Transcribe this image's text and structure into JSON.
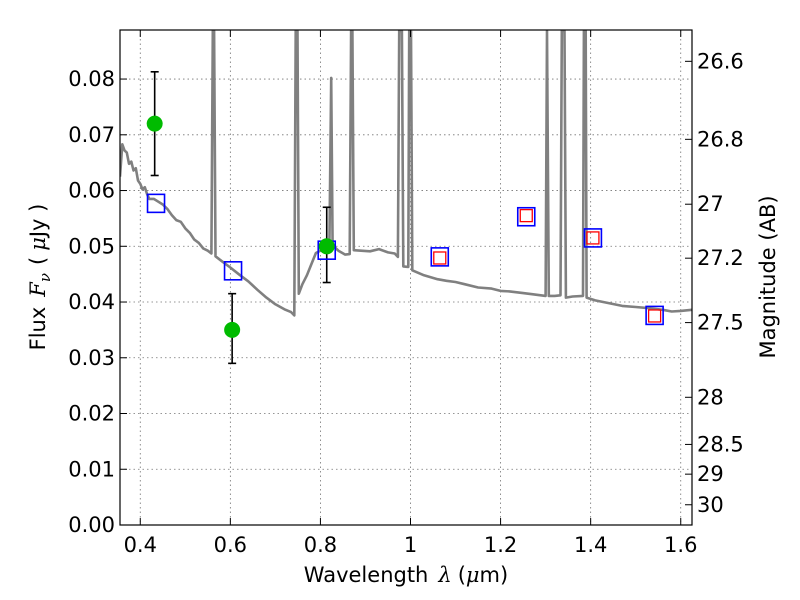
{
  "chart_data": {
    "type": "scatter",
    "xlabel": "Wavelength",
    "xlabel_symbol": "λ",
    "xlabel_unit_open": "(",
    "xlabel_unit_mu": "μ",
    "xlabel_unit_rest": "m)",
    "ylabel": "Flux",
    "ylabel_symbol": "F",
    "ylabel_subscript": "ν",
    "ylabel_unit_open": "(",
    "ylabel_unit_mu": "μ",
    "ylabel_unit_rest": "Jy )",
    "y2label": "Magnitude (AB)",
    "xlim": [
      0.355,
      1.625
    ],
    "ylim": [
      0.0,
      0.0888
    ],
    "grid": true,
    "x_ticks": [
      {
        "value": 0.4,
        "label": "0.4"
      },
      {
        "value": 0.6,
        "label": "0.6"
      },
      {
        "value": 0.8,
        "label": "0.8"
      },
      {
        "value": 1.0,
        "label": "1"
      },
      {
        "value": 1.2,
        "label": "1.2"
      },
      {
        "value": 1.4,
        "label": "1.4"
      },
      {
        "value": 1.6,
        "label": "1.6"
      }
    ],
    "y_ticks": [
      {
        "value": 0.0,
        "label": "0.00"
      },
      {
        "value": 0.01,
        "label": "0.01"
      },
      {
        "value": 0.02,
        "label": "0.02"
      },
      {
        "value": 0.03,
        "label": "0.03"
      },
      {
        "value": 0.04,
        "label": "0.04"
      },
      {
        "value": 0.05,
        "label": "0.05"
      },
      {
        "value": 0.06,
        "label": "0.06"
      },
      {
        "value": 0.07,
        "label": "0.07"
      },
      {
        "value": 0.08,
        "label": "0.08"
      }
    ],
    "y2_ticks": [
      {
        "value": 26.6,
        "label": "26.6"
      },
      {
        "value": 26.8,
        "label": "26.8"
      },
      {
        "value": 27.0,
        "label": "27"
      },
      {
        "value": 27.2,
        "label": "27.2"
      },
      {
        "value": 27.5,
        "label": "27.5"
      },
      {
        "value": 28.0,
        "label": "28"
      },
      {
        "value": 28.5,
        "label": "28.5"
      },
      {
        "value": 29.0,
        "label": "29"
      },
      {
        "value": 30.0,
        "label": "30"
      }
    ],
    "series": [
      {
        "kind": "sed_model_line",
        "color": "#808080",
        "points": [
          [
            0.355,
            0.0625
          ],
          [
            0.36,
            0.0683
          ],
          [
            0.365,
            0.0672
          ],
          [
            0.37,
            0.0668
          ],
          [
            0.375,
            0.0648
          ],
          [
            0.38,
            0.0652
          ],
          [
            0.385,
            0.0636
          ],
          [
            0.39,
            0.064
          ],
          [
            0.395,
            0.0618
          ],
          [
            0.4,
            0.0612
          ],
          [
            0.405,
            0.0602
          ],
          [
            0.41,
            0.0606
          ],
          [
            0.415,
            0.0594
          ],
          [
            0.42,
            0.0585
          ],
          [
            0.43,
            0.0585
          ],
          [
            0.44,
            0.058
          ],
          [
            0.45,
            0.0575
          ],
          [
            0.46,
            0.0567
          ],
          [
            0.47,
            0.0556
          ],
          [
            0.48,
            0.0547
          ],
          [
            0.49,
            0.0544
          ],
          [
            0.5,
            0.0532
          ],
          [
            0.51,
            0.0524
          ],
          [
            0.52,
            0.0512
          ],
          [
            0.53,
            0.0506
          ],
          [
            0.54,
            0.0496
          ],
          [
            0.55,
            0.0492
          ],
          [
            0.558,
            0.0487
          ],
          [
            0.561,
            0.0886
          ],
          [
            0.564,
            0.0886
          ],
          [
            0.567,
            0.0482
          ],
          [
            0.58,
            0.0474
          ],
          [
            0.6,
            0.0462
          ],
          [
            0.62,
            0.0449
          ],
          [
            0.64,
            0.0437
          ],
          [
            0.66,
            0.0422
          ],
          [
            0.68,
            0.0408
          ],
          [
            0.7,
            0.0396
          ],
          [
            0.72,
            0.0387
          ],
          [
            0.735,
            0.0382
          ],
          [
            0.742,
            0.0376
          ],
          [
            0.745,
            0.0886
          ],
          [
            0.749,
            0.0886
          ],
          [
            0.752,
            0.0415
          ],
          [
            0.76,
            0.0432
          ],
          [
            0.77,
            0.0448
          ],
          [
            0.78,
            0.0468
          ],
          [
            0.79,
            0.0488
          ],
          [
            0.8,
            0.0492
          ],
          [
            0.81,
            0.0498
          ],
          [
            0.82,
            0.0502
          ],
          [
            0.824,
            0.0802
          ],
          [
            0.827,
            0.0502
          ],
          [
            0.84,
            0.0492
          ],
          [
            0.855,
            0.0485
          ],
          [
            0.865,
            0.0486
          ],
          [
            0.868,
            0.0886
          ],
          [
            0.871,
            0.0886
          ],
          [
            0.874,
            0.0493
          ],
          [
            0.89,
            0.0492
          ],
          [
            0.91,
            0.0491
          ],
          [
            0.93,
            0.0495
          ],
          [
            0.95,
            0.0489
          ],
          [
            0.965,
            0.0487
          ],
          [
            0.972,
            0.0481
          ],
          [
            0.975,
            0.0886
          ],
          [
            0.981,
            0.0886
          ],
          [
            0.984,
            0.0464
          ],
          [
            0.995,
            0.0463
          ],
          [
            0.997,
            0.0886
          ],
          [
            1.001,
            0.0886
          ],
          [
            1.004,
            0.0457
          ],
          [
            1.03,
            0.0448
          ],
          [
            1.06,
            0.0441
          ],
          [
            1.08,
            0.0438
          ],
          [
            1.1,
            0.0436
          ],
          [
            1.12,
            0.0432
          ],
          [
            1.15,
            0.0426
          ],
          [
            1.18,
            0.0424
          ],
          [
            1.2,
            0.042
          ],
          [
            1.22,
            0.0419
          ],
          [
            1.25,
            0.0416
          ],
          [
            1.27,
            0.0414
          ],
          [
            1.3,
            0.0411
          ],
          [
            1.303,
            0.0886
          ],
          [
            1.307,
            0.0411
          ],
          [
            1.32,
            0.0411
          ],
          [
            1.333,
            0.0412
          ],
          [
            1.336,
            0.0886
          ],
          [
            1.342,
            0.0886
          ],
          [
            1.345,
            0.0408
          ],
          [
            1.36,
            0.041
          ],
          [
            1.383,
            0.0411
          ],
          [
            1.385,
            0.0886
          ],
          [
            1.389,
            0.0886
          ],
          [
            1.391,
            0.0408
          ],
          [
            1.41,
            0.0403
          ],
          [
            1.44,
            0.0398
          ],
          [
            1.47,
            0.0393
          ],
          [
            1.5,
            0.0391
          ],
          [
            1.53,
            0.0389
          ],
          [
            1.56,
            0.0386
          ],
          [
            1.58,
            0.0383
          ],
          [
            1.6,
            0.0384
          ],
          [
            1.625,
            0.0386
          ]
        ]
      },
      {
        "kind": "observed_flux",
        "color": "#00bb00",
        "points": [
          {
            "x": 0.432,
            "y": 0.072,
            "err_low": 0.0627,
            "err_high": 0.0813
          },
          {
            "x": 0.604,
            "y": 0.035,
            "err_low": 0.029,
            "err_high": 0.0415
          },
          {
            "x": 0.814,
            "y": 0.05,
            "err_low": 0.0435,
            "err_high": 0.057
          }
        ]
      },
      {
        "kind": "model_band_flux_blue",
        "color": "#0000ff",
        "points": [
          {
            "x": 0.435,
            "y": 0.0577
          },
          {
            "x": 0.606,
            "y": 0.0456
          },
          {
            "x": 0.814,
            "y": 0.0493
          },
          {
            "x": 1.065,
            "y": 0.0481
          },
          {
            "x": 1.257,
            "y": 0.0553
          },
          {
            "x": 1.405,
            "y": 0.0515
          },
          {
            "x": 1.542,
            "y": 0.0376
          }
        ]
      },
      {
        "kind": "model_band_flux_red",
        "color": "#ff0000",
        "points": [
          {
            "x": 1.065,
            "y": 0.0479
          },
          {
            "x": 1.257,
            "y": 0.0555
          },
          {
            "x": 1.405,
            "y": 0.0515
          },
          {
            "x": 1.542,
            "y": 0.0375
          }
        ]
      }
    ]
  }
}
